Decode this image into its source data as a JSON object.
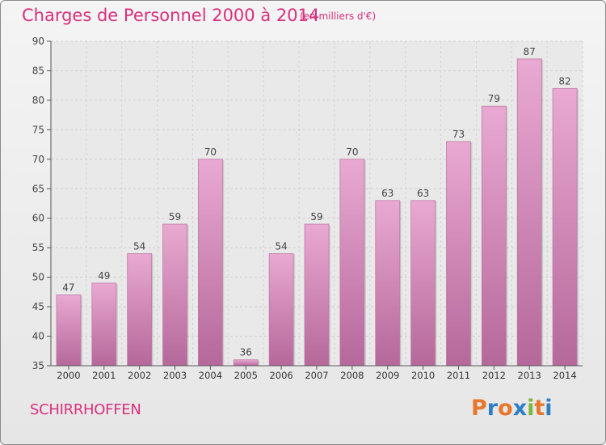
{
  "header": {
    "title": "Charges de Personnel 2000 à 2014",
    "subtitle": "(en milliers d'€)"
  },
  "footer": {
    "commune": "SCHIRRHOFFEN",
    "logo_text": "Proxiti"
  },
  "colors": {
    "accent": "#d9307e",
    "bar_top": "#e9a9d2",
    "bar_bottom": "#b5689a",
    "logo_letters": [
      "#e8762b",
      "#2f7fc8",
      "#e8762b",
      "#2f7fc8",
      "#7ab73c",
      "#e8762b",
      "#2f7fc8"
    ]
  },
  "chart_data": {
    "type": "bar",
    "title": "Charges de Personnel 2000 à 2014",
    "subtitle": "(en milliers d'€)",
    "categories": [
      "2000",
      "2001",
      "2002",
      "2003",
      "2004",
      "2005",
      "2006",
      "2007",
      "2008",
      "2009",
      "2010",
      "2011",
      "2012",
      "2013",
      "2014"
    ],
    "values": [
      47,
      49,
      54,
      59,
      70,
      36,
      54,
      59,
      70,
      63,
      63,
      73,
      79,
      87,
      82
    ],
    "ylim": [
      35,
      90
    ],
    "yticks": [
      35,
      40,
      45,
      50,
      55,
      60,
      65,
      70,
      75,
      80,
      85,
      90
    ],
    "grid": true,
    "data_labels": true
  }
}
